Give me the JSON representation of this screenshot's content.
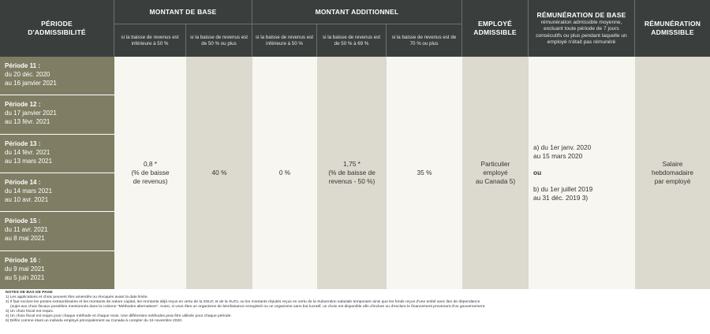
{
  "header": {
    "period": "PÉRIODE D'ADMISSIBILITÉ",
    "base_amount": "MONTANT DE BASE",
    "additional_amount": "MONTANT ADDITIONNEL",
    "eligible_employee": "EMPLOYÉ ADMISSIBLE",
    "base_remuneration_title": "RÉMUNÉRATION DE BASE",
    "base_remuneration_desc": "rémunération admissible moyenne, excluant toute période de 7 jours consécutifs ou plus pendant laquelle un employé n'était pas rémunéré",
    "eligible_remuneration": "RÉMUNÉRATION ADMISSIBLE"
  },
  "subheaders": {
    "base_under_50": "si la baisse de revenus est inférieure à 50 %",
    "base_50_plus": "si la baisse de revenus est de 50 % ou plus",
    "add_under_50": "si la baisse de revenus est inférieure à 50 %",
    "add_50_69": "si la baisse de revenus est de 50 % à 69 %",
    "add_70_plus": "si la baisse de revenus est de 70 % ou plus"
  },
  "periods": [
    {
      "title": "Période 11 :",
      "from": "du 20 déc. 2020",
      "to": "au 16 janvier 2021"
    },
    {
      "title": "Période 12 :",
      "from": "du 17 janvier 2021",
      "to": "au 13 févr. 2021"
    },
    {
      "title": "Période 13 :",
      "from": "du 14 févr. 2021",
      "to": "au 13 mars 2021"
    },
    {
      "title": "Période 14 :",
      "from": "du 14 mars 2021",
      "to": "au 10 avr. 2021"
    },
    {
      "title": "Période 15 :",
      "from": "du 11 avr. 2021",
      "to": "au 8 mai 2021"
    },
    {
      "title": "Période 16 :",
      "from": "du 9 mai 2021",
      "to": "au 5 juin 2021"
    }
  ],
  "values": {
    "base_under_50_l1": "0,8 *",
    "base_under_50_l2": "(% de baisse",
    "base_under_50_l3": "de revenus)",
    "base_50_plus": "40 %",
    "add_under_50": "0 %",
    "add_50_69_l1": "1,75 *",
    "add_50_69_l2": "(% de baisse de",
    "add_50_69_l3": "revenus - 50 %)",
    "add_70_plus": "35 %",
    "employee_l1": "Particulier",
    "employee_l2": "employé",
    "employee_l3": "au Canada 5)",
    "base_a_l1": "a) du 1er janv. 2020",
    "base_a_l2": "au 15 mars 2020",
    "base_or": "ou",
    "base_b_l1": "b) du 1er juillet 2019",
    "base_b_l2": "au 31 déc. 2019 3)",
    "remun_l1": "Salaire",
    "remun_l2": "hebdomadaire",
    "remun_l3": "par employé"
  },
  "notes": {
    "title": "NOTES DE BAS DE PAGE",
    "n1": "1) Les applications et choix peuvent être amendés ou révoqués avant la date limite.",
    "n2": "2) Il faut exclure les postes extraordinaires et les montants de nature capital, les montants déjà reçus en vertu de la SSUC et de la SUCL ou les montants réputés reçus en vertu de la Subvention salariale temporaire ainsi que les fonds reçus d'une entité avec lien de dépendance",
    "n2b": "(sujet aux choix fiscaux possibles mentionnés dans la colonne \"Méthodes alternatives\". Aussi, si vous êtes un organisme de bienfaisance enregistré ou un organisme sans but lucratif, un choix est disponible afin d'inclure ou d'exclure le financement provenant d'un gouvernement.",
    "n3": "3) Un choix fiscal est requis.",
    "n4": "4) Un choix fiscal est requis pour chaque méthode et chaque mois. Une différentes méthodes peut être utilisée pour chaque période.",
    "n5": "5) Défini comme étant un individu employé principalement au Canada à compter du 19 novembre 2020."
  },
  "colors": {
    "header_bg": "#3a3f3e",
    "period_bg": "#7f7e64",
    "light_col": "#f7f6f1",
    "grey_col": "#dcd9cf"
  }
}
